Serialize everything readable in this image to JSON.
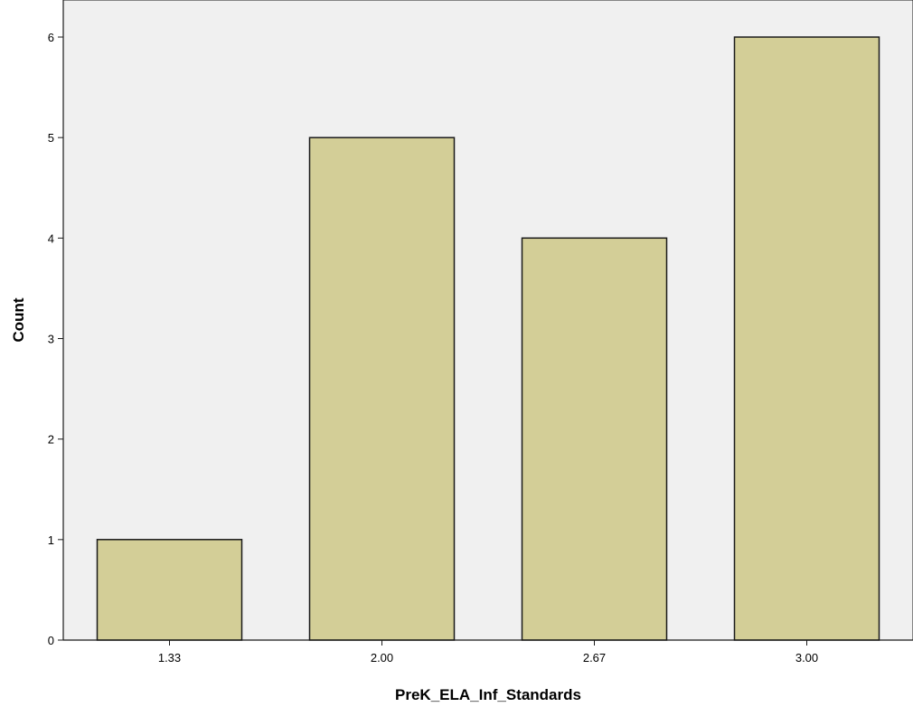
{
  "chart_data": {
    "type": "bar",
    "title": "",
    "xlabel": "PreK_ELA_Inf_Standards",
    "ylabel": "Count",
    "categories": [
      "1.33",
      "2.00",
      "2.67",
      "3.00"
    ],
    "values": [
      1,
      5,
      4,
      6
    ],
    "ylim": [
      0,
      6
    ],
    "yticks": [
      "0",
      "1",
      "2",
      "3",
      "4",
      "5",
      "6"
    ],
    "grid": false,
    "legend": "none",
    "colors": {
      "plot_background": "#f0f0f0",
      "bar_fill": "#d3ce97",
      "bar_stroke": "#1a1a1a",
      "axis": "#1a1a1a"
    }
  }
}
